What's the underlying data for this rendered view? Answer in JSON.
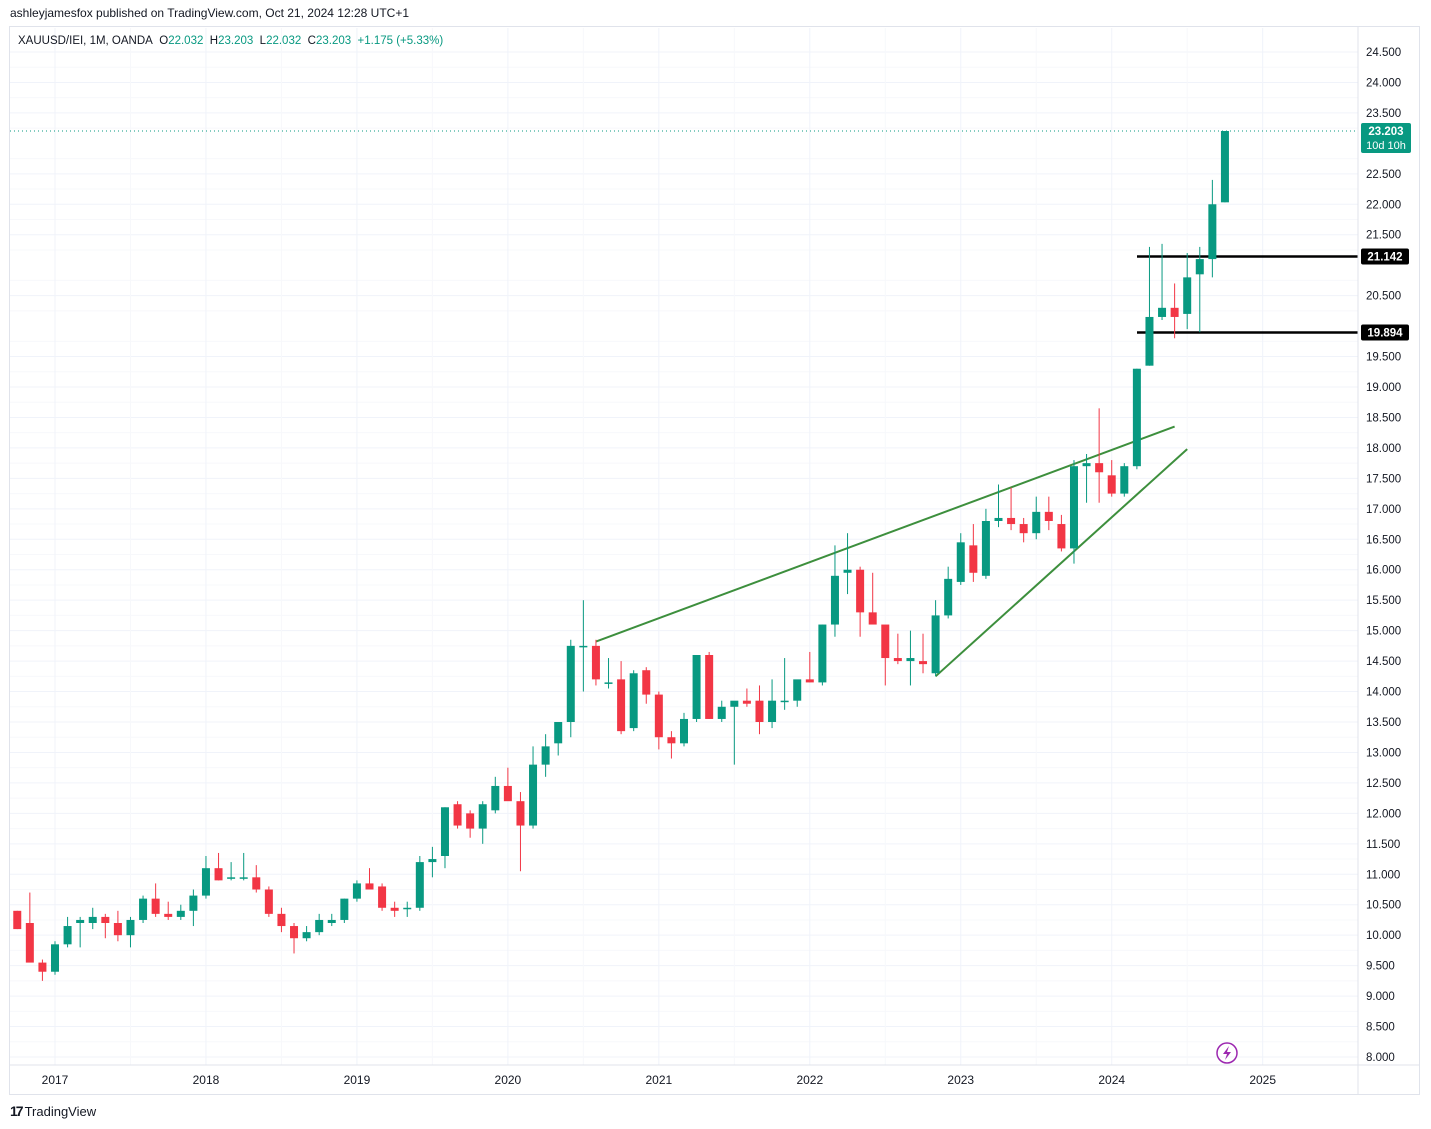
{
  "header": {
    "published_line": "ashleyjamesfox published on TradingView.com, Oct 21, 2024 12:28 UTC+1"
  },
  "legend": {
    "symbol": "XAUUSD/IEI, 1M, OANDA",
    "open_label": "O",
    "open": "22.032",
    "high_label": "H",
    "high": "23.203",
    "low_label": "L",
    "low": "22.032",
    "close_label": "C",
    "close": "23.203",
    "change": "+1.175 (+5.33%)"
  },
  "footer": {
    "brand": "TradingView",
    "brand_icon": "tradingview-logo-icon"
  },
  "colors": {
    "up": "#089981",
    "down": "#f23645",
    "trendline": "#3d8f3d",
    "level": "#000000",
    "grid": "#f0f3fa"
  },
  "chart_data": {
    "type": "candlestick",
    "timeframe": "1M",
    "ylim": [
      8.0,
      24.5
    ],
    "y_ticks": [
      "24.500",
      "24.000",
      "23.500",
      "22.500",
      "22.000",
      "21.500",
      "20.500",
      "19.500",
      "19.000",
      "18.500",
      "18.000",
      "17.500",
      "17.000",
      "16.500",
      "16.000",
      "15.500",
      "15.000",
      "14.500",
      "14.000",
      "13.500",
      "13.000",
      "12.500",
      "12.000",
      "11.500",
      "11.000",
      "10.500",
      "10.000",
      "9.500",
      "9.000",
      "8.500",
      "8.000"
    ],
    "x_ticks": [
      "2017",
      "2018",
      "2019",
      "2020",
      "2021",
      "2022",
      "2023",
      "2024",
      "2025"
    ],
    "start_month": "2016-10",
    "candles": [
      [
        10.4,
        10.4,
        10.1,
        10.1
      ],
      [
        10.2,
        10.7,
        9.6,
        9.55
      ],
      [
        9.55,
        9.6,
        9.25,
        9.4
      ],
      [
        9.4,
        9.9,
        9.35,
        9.85
      ],
      [
        9.85,
        10.3,
        9.8,
        10.15
      ],
      [
        10.2,
        10.3,
        9.8,
        10.25
      ],
      [
        10.2,
        10.45,
        10.1,
        10.3
      ],
      [
        10.3,
        10.35,
        9.95,
        10.2
      ],
      [
        10.2,
        10.4,
        9.9,
        10.0
      ],
      [
        10.0,
        10.3,
        9.8,
        10.25
      ],
      [
        10.25,
        10.65,
        10.2,
        10.6
      ],
      [
        10.6,
        10.85,
        10.3,
        10.35
      ],
      [
        10.35,
        10.55,
        10.25,
        10.3
      ],
      [
        10.3,
        10.5,
        10.25,
        10.4
      ],
      [
        10.4,
        10.75,
        10.15,
        10.65
      ],
      [
        10.65,
        11.3,
        10.6,
        11.1
      ],
      [
        11.1,
        11.35,
        10.9,
        10.9
      ],
      [
        10.95,
        11.2,
        10.9,
        10.95
      ],
      [
        10.95,
        11.35,
        10.9,
        10.95
      ],
      [
        10.95,
        11.15,
        10.7,
        10.75
      ],
      [
        10.75,
        10.8,
        10.3,
        10.35
      ],
      [
        10.35,
        10.45,
        10.05,
        10.15
      ],
      [
        10.15,
        10.2,
        9.7,
        9.95
      ],
      [
        9.95,
        10.15,
        9.9,
        10.05
      ],
      [
        10.05,
        10.35,
        10.0,
        10.25
      ],
      [
        10.2,
        10.35,
        10.15,
        10.25
      ],
      [
        10.25,
        10.6,
        10.2,
        10.6
      ],
      [
        10.6,
        10.9,
        10.55,
        10.85
      ],
      [
        10.85,
        11.1,
        10.75,
        10.75
      ],
      [
        10.8,
        10.85,
        10.4,
        10.45
      ],
      [
        10.45,
        10.55,
        10.3,
        10.4
      ],
      [
        10.45,
        10.55,
        10.3,
        10.45
      ],
      [
        10.45,
        11.3,
        10.4,
        11.2
      ],
      [
        11.2,
        11.45,
        10.95,
        11.25
      ],
      [
        11.3,
        12.1,
        11.1,
        12.1
      ],
      [
        12.15,
        12.2,
        11.75,
        11.8
      ],
      [
        12.0,
        12.05,
        11.6,
        11.75
      ],
      [
        11.75,
        12.2,
        11.5,
        12.15
      ],
      [
        12.05,
        12.6,
        12.0,
        12.45
      ],
      [
        12.45,
        12.75,
        12.25,
        12.2
      ],
      [
        12.2,
        12.35,
        11.05,
        11.8
      ],
      [
        11.8,
        13.1,
        11.75,
        12.8
      ],
      [
        12.8,
        13.3,
        12.6,
        13.1
      ],
      [
        13.15,
        13.5,
        12.95,
        13.5
      ],
      [
        13.5,
        14.85,
        13.25,
        14.75
      ],
      [
        14.75,
        15.5,
        14.0,
        14.75
      ],
      [
        14.75,
        14.85,
        14.1,
        14.2
      ],
      [
        14.15,
        14.55,
        14.05,
        14.15
      ],
      [
        14.2,
        14.5,
        13.3,
        13.35
      ],
      [
        13.4,
        14.35,
        13.35,
        14.3
      ],
      [
        14.35,
        14.4,
        13.8,
        13.95
      ],
      [
        13.95,
        14.0,
        13.05,
        13.25
      ],
      [
        13.25,
        13.35,
        12.9,
        13.15
      ],
      [
        13.15,
        13.65,
        13.1,
        13.55
      ],
      [
        13.55,
        14.6,
        13.5,
        14.6
      ],
      [
        14.6,
        14.65,
        13.55,
        13.55
      ],
      [
        13.55,
        13.85,
        13.5,
        13.75
      ],
      [
        13.75,
        13.8,
        12.8,
        13.85
      ],
      [
        13.85,
        14.05,
        13.75,
        13.8
      ],
      [
        13.85,
        14.1,
        13.3,
        13.5
      ],
      [
        13.5,
        14.2,
        13.4,
        13.85
      ],
      [
        13.85,
        14.55,
        13.7,
        13.85
      ],
      [
        13.85,
        14.1,
        13.75,
        14.2
      ],
      [
        14.2,
        14.65,
        14.15,
        14.15
      ],
      [
        14.15,
        15.1,
        14.1,
        15.1
      ],
      [
        15.1,
        16.4,
        14.9,
        15.9
      ],
      [
        15.95,
        16.6,
        15.6,
        16.0
      ],
      [
        16.0,
        16.05,
        14.9,
        15.3
      ],
      [
        15.3,
        15.95,
        15.2,
        15.1
      ],
      [
        15.1,
        15.05,
        14.1,
        14.55
      ],
      [
        14.55,
        14.95,
        14.45,
        14.5
      ],
      [
        14.5,
        15.0,
        14.1,
        14.55
      ],
      [
        14.5,
        14.95,
        14.3,
        14.45
      ],
      [
        14.3,
        15.5,
        14.25,
        15.25
      ],
      [
        15.25,
        16.05,
        15.2,
        15.85
      ],
      [
        15.8,
        16.6,
        15.75,
        16.45
      ],
      [
        16.4,
        16.75,
        15.8,
        15.95
      ],
      [
        15.9,
        17.0,
        15.85,
        16.8
      ],
      [
        16.8,
        17.4,
        16.7,
        16.85
      ],
      [
        16.85,
        17.35,
        16.65,
        16.75
      ],
      [
        16.75,
        16.85,
        16.45,
        16.6
      ],
      [
        16.6,
        17.2,
        16.5,
        16.95
      ],
      [
        16.95,
        17.2,
        16.65,
        16.8
      ],
      [
        16.75,
        16.9,
        16.3,
        16.35
      ],
      [
        16.35,
        17.8,
        16.1,
        17.7
      ],
      [
        17.7,
        17.9,
        17.1,
        17.75
      ],
      [
        17.75,
        18.65,
        17.1,
        17.6
      ],
      [
        17.55,
        17.8,
        17.2,
        17.25
      ],
      [
        17.25,
        17.75,
        17.2,
        17.7
      ],
      [
        17.7,
        19.3,
        17.65,
        19.3
      ],
      [
        19.35,
        21.3,
        19.35,
        20.15
      ],
      [
        20.15,
        21.35,
        20.1,
        20.3
      ],
      [
        20.3,
        20.7,
        19.8,
        20.15
      ],
      [
        20.2,
        21.2,
        19.95,
        20.8
      ],
      [
        20.85,
        21.3,
        19.9,
        21.1
      ],
      [
        21.1,
        22.4,
        20.8,
        22.0
      ],
      [
        22.032,
        23.203,
        22.032,
        23.203
      ]
    ],
    "last_price": {
      "value": "23.203",
      "countdown": "10d 10h"
    },
    "horizontal_levels": [
      {
        "label": "21.142",
        "value": 21.142
      },
      {
        "label": "19.894",
        "value": 19.894
      }
    ],
    "trendlines": [
      {
        "start": [
          "2020-08",
          14.82
        ],
        "end": [
          "2024-06",
          18.35
        ]
      },
      {
        "start": [
          "2022-11",
          14.25
        ],
        "end": [
          "2024-07",
          17.98
        ]
      }
    ],
    "grid": true
  }
}
